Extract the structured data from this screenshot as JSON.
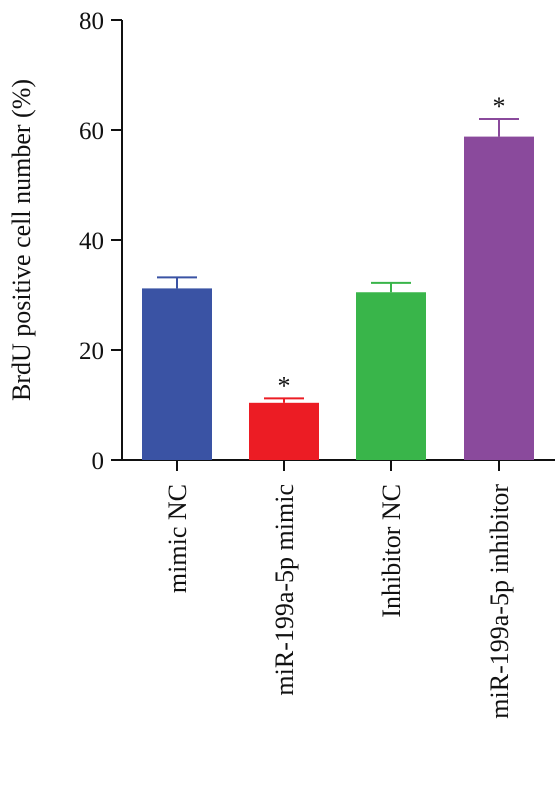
{
  "chart_data": {
    "type": "bar",
    "title": "",
    "xlabel": "",
    "ylabel": "BrdU positive cell number (%)",
    "ylim": [
      0,
      80
    ],
    "yticks": [
      0,
      20,
      40,
      60,
      80
    ],
    "grid": false,
    "legend": "none",
    "categories": [
      "mimic NC",
      "miR-199a-5p mimic",
      "Inhibitor NC",
      "miR-199a-5p inhibitor"
    ],
    "values": [
      31.2,
      10.4,
      30.5,
      58.8
    ],
    "errors": [
      2.0,
      0.8,
      1.7,
      3.2
    ],
    "significance": [
      "",
      "*",
      "",
      "*"
    ],
    "colors": [
      "#3a53a4",
      "#ec1c24",
      "#39b54a",
      "#8a4a9c"
    ]
  }
}
